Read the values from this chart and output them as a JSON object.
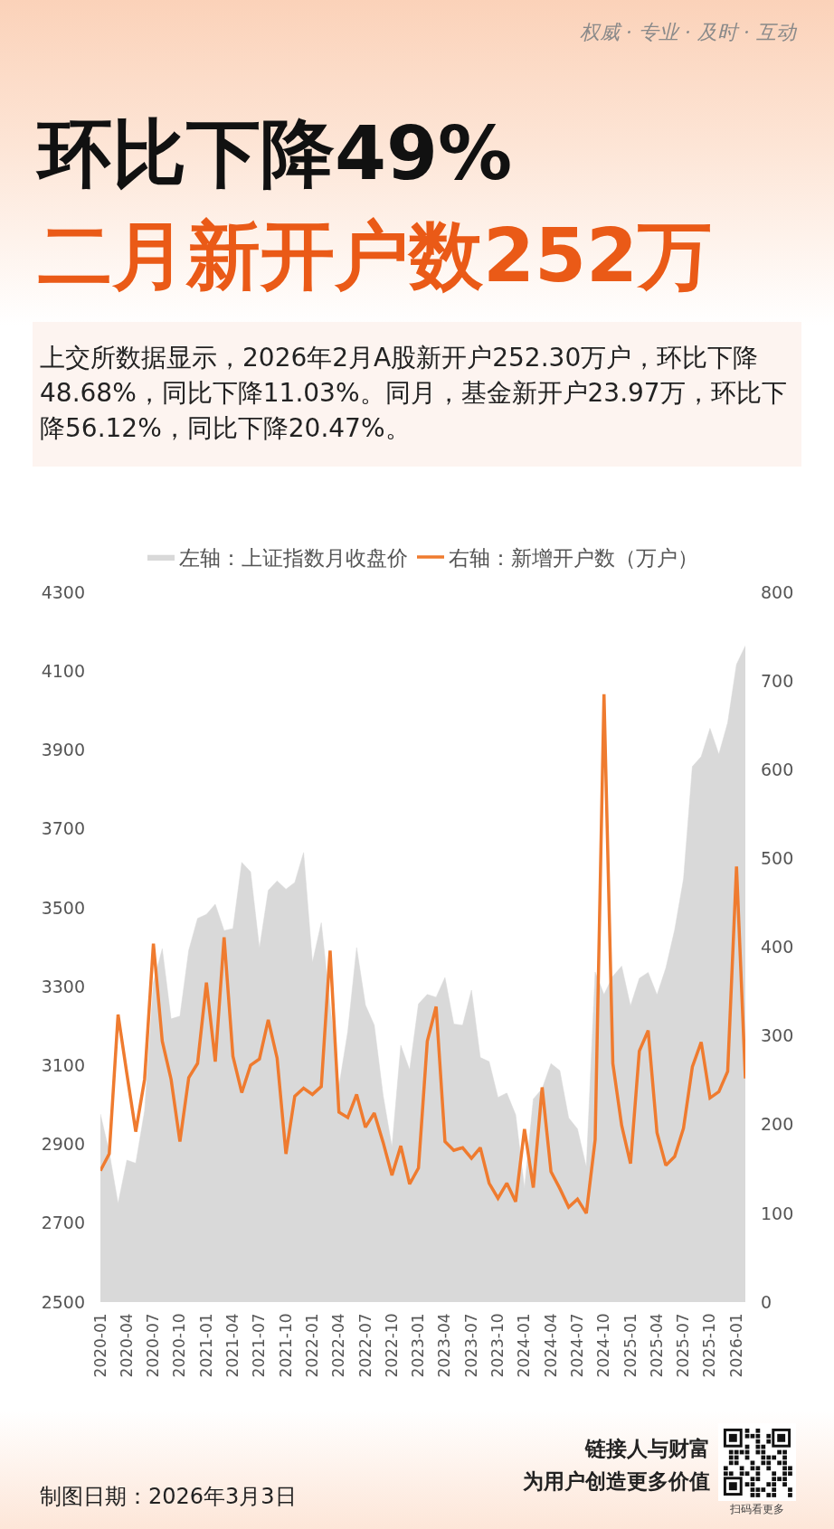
{
  "chart_data": {
    "type": "area",
    "title": "环比下降49%",
    "subtitle": "二月新开户数252万",
    "annotations": [
      "权威 · 专业 · 及时 · 互动",
      "上交所数据显示，2026年2月A股新开户252.30万户，环比下降48.68%，同比下降11.03%。同月，基金新开户23.97万，环比下降56.12%，同比下降20.47%。",
      "制图日期：2026年3月3日",
      "链接人与财富",
      "为用户创造更多价值",
      "扫码看更多"
    ],
    "categories": [
      "2020-01",
      null,
      null,
      "2020-04",
      null,
      null,
      "2020-07",
      null,
      null,
      "2020-10",
      null,
      null,
      "2021-01",
      null,
      null,
      "2021-04",
      null,
      null,
      "2021-07",
      null,
      null,
      "2021-10",
      null,
      null,
      "2022-01",
      null,
      null,
      "2022-04",
      null,
      null,
      "2022-07",
      null,
      null,
      "2022-10",
      null,
      null,
      "2023-01",
      null,
      null,
      "2023-04",
      null,
      null,
      "2023-07",
      null,
      null,
      "2023-10",
      null,
      null,
      "2024-01",
      null,
      null,
      "2024-04",
      null,
      null,
      "2024-07",
      null,
      null,
      "2024-10",
      null,
      null,
      "2025-01",
      null,
      null,
      "2025-04",
      null,
      null,
      "2025-07",
      null,
      null,
      "2025-10",
      null,
      null,
      "2026-01",
      null
    ],
    "series": [
      {
        "name": "左轴：上证指数月收盘价",
        "color": "#d9d9d9",
        "values": [
          2977,
          2880,
          2750,
          2860,
          2852,
          2985,
          3310,
          3396,
          3218,
          3225,
          3392,
          3473,
          3483,
          3509,
          3442,
          3447,
          3615,
          3591,
          3397,
          3544,
          3568,
          3547,
          3564,
          3640,
          3361,
          3462,
          3252,
          3047,
          3186,
          3399,
          3253,
          3202,
          3024,
          2893,
          3151,
          3089,
          3256,
          3280,
          3273,
          3323,
          3205,
          3202,
          3291,
          3120,
          3110,
          3019,
          3030,
          2975,
          2789,
          3015,
          3041,
          3105,
          3087,
          2967,
          2939,
          2842,
          3337,
          3280,
          3326,
          3352,
          3251,
          3321,
          3336,
          3279,
          3347,
          3444,
          3573,
          3858,
          3883,
          3955,
          3889,
          3969,
          4117,
          4164
        ]
      },
      {
        "name": "右轴：新增开户数（万户）",
        "type": "line",
        "axis": "y2",
        "color": "#ef7b2f",
        "values": [
          148,
          167,
          324,
          257,
          192,
          251,
          404,
          294,
          251,
          181,
          253,
          269,
          360,
          271,
          411,
          277,
          236,
          267,
          274,
          318,
          275,
          167,
          232,
          241,
          234,
          243,
          396,
          214,
          208,
          234,
          197,
          213,
          180,
          143,
          176,
          133,
          151,
          294,
          333,
          181,
          171,
          174,
          162,
          174,
          134,
          117,
          134,
          113,
          195,
          129,
          242,
          147,
          128,
          107,
          116,
          100,
          183,
          685,
          269,
          199,
          156,
          283,
          306,
          191,
          154,
          164,
          196,
          265,
          293,
          230,
          237,
          260,
          491,
          252
        ]
      }
    ],
    "ylim": [
      2500,
      4300
    ],
    "yticks": [
      2500,
      2700,
      2900,
      3100,
      3300,
      3500,
      3700,
      3900,
      4100,
      4300
    ],
    "y2lim": [
      0,
      800
    ],
    "y2ticks": [
      0,
      100,
      200,
      300,
      400,
      500,
      600,
      700,
      800
    ],
    "legend": "top"
  }
}
